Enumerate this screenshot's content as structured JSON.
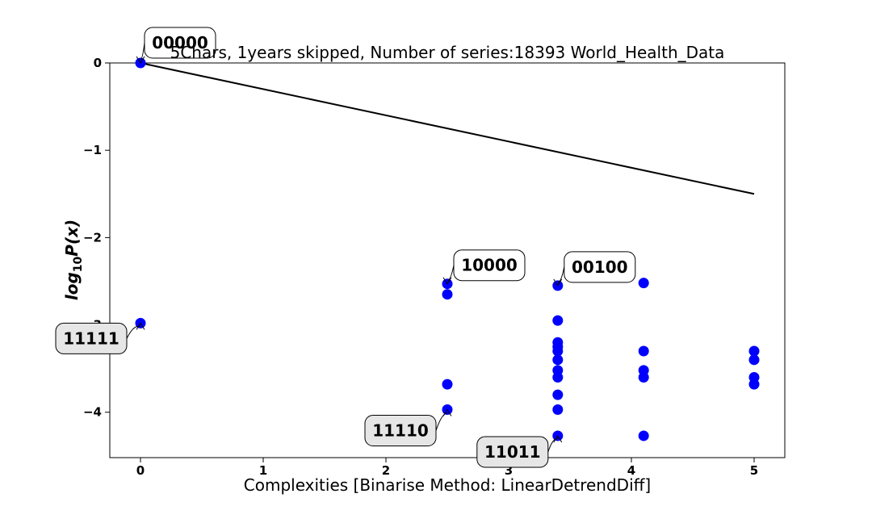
{
  "chart_data": {
    "type": "scatter",
    "title": "5Chars, 1years skipped, Number of series:18393 World_Health_Data",
    "xlabel": "Complexities [Binarise Method: LinearDetrendDiff]",
    "ylabel_main": "log",
    "ylabel_sub": "10",
    "ylabel_tail": "P(x)",
    "xlim": [
      -0.25,
      5.25
    ],
    "ylim": [
      -4.52,
      0.0
    ],
    "x_ticks": [
      0,
      1,
      2,
      3,
      4,
      5
    ],
    "x_tick_labels": [
      "0",
      "1",
      "2",
      "3",
      "4",
      "5"
    ],
    "y_ticks": [
      0,
      -1,
      -2,
      -3,
      -4
    ],
    "y_tick_labels": [
      "0",
      "−1",
      "−2",
      "−3",
      "−4"
    ],
    "grid": false,
    "point_color": "#0000ff",
    "line_color": "#000000",
    "points": [
      {
        "x": 0.0,
        "y": 0.0
      },
      {
        "x": 0.0,
        "y": -2.98
      },
      {
        "x": 2.5,
        "y": -2.53
      },
      {
        "x": 2.5,
        "y": -2.65
      },
      {
        "x": 2.5,
        "y": -3.68
      },
      {
        "x": 2.5,
        "y": -3.97
      },
      {
        "x": 3.4,
        "y": -2.55
      },
      {
        "x": 3.4,
        "y": -2.95
      },
      {
        "x": 3.4,
        "y": -3.2
      },
      {
        "x": 3.4,
        "y": -3.25
      },
      {
        "x": 3.4,
        "y": -3.3
      },
      {
        "x": 3.4,
        "y": -3.4
      },
      {
        "x": 3.4,
        "y": -3.52
      },
      {
        "x": 3.4,
        "y": -3.6
      },
      {
        "x": 3.4,
        "y": -3.8
      },
      {
        "x": 3.4,
        "y": -3.97
      },
      {
        "x": 3.4,
        "y": -4.27
      },
      {
        "x": 4.1,
        "y": -2.52
      },
      {
        "x": 4.1,
        "y": -3.3
      },
      {
        "x": 4.1,
        "y": -3.52
      },
      {
        "x": 4.1,
        "y": -3.6
      },
      {
        "x": 4.1,
        "y": -4.27
      },
      {
        "x": 5.0,
        "y": -3.3
      },
      {
        "x": 5.0,
        "y": -3.4
      },
      {
        "x": 5.0,
        "y": -3.6
      },
      {
        "x": 5.0,
        "y": -3.68
      }
    ],
    "trend_line": {
      "x": [
        0.0,
        5.0
      ],
      "y": [
        0.0,
        -1.5
      ]
    },
    "annotations": [
      {
        "text": "00000",
        "x": 0.0,
        "y": 0.0,
        "style": "white"
      },
      {
        "text": "11111",
        "x": 0.0,
        "y": -2.98,
        "style": "gray"
      },
      {
        "text": "10000",
        "x": 2.5,
        "y": -2.53,
        "style": "white"
      },
      {
        "text": "11110",
        "x": 2.5,
        "y": -3.97,
        "style": "gray"
      },
      {
        "text": "00100",
        "x": 3.4,
        "y": -2.55,
        "style": "white"
      },
      {
        "text": "11011",
        "x": 3.4,
        "y": -4.27,
        "style": "gray"
      }
    ]
  }
}
